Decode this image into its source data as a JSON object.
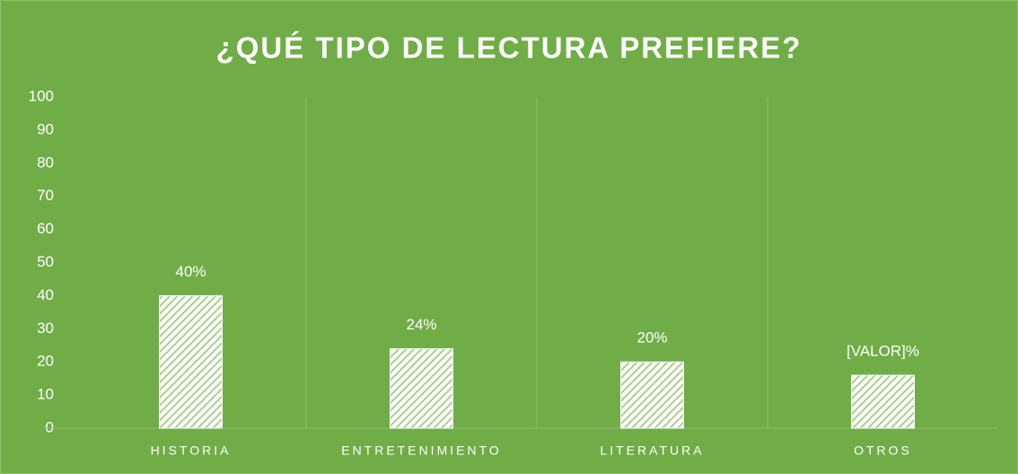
{
  "chart_data": {
    "type": "bar",
    "title": "¿QUÉ TIPO DE LECTURA PREFIERE?",
    "categories": [
      "HISTORIA",
      "ENTRETENIMIENTO",
      "LITERATURA",
      "OTROS"
    ],
    "values": [
      40,
      24,
      20,
      16
    ],
    "value_labels": [
      "40%",
      "24%",
      "20%",
      "[VALOR]%"
    ],
    "color": "#ffffff",
    "ylim": [
      0,
      100
    ],
    "yticks": [
      0,
      10,
      20,
      30,
      40,
      50,
      60,
      70,
      80,
      90,
      100
    ],
    "grid": false
  }
}
